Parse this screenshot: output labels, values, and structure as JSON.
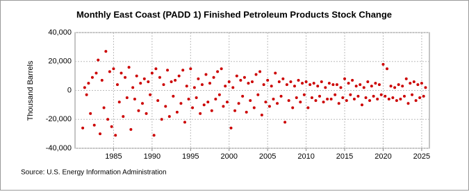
{
  "chart_data": {
    "type": "scatter",
    "title": "Monthly East Coast (PADD 1) Finished Petroleum Products Stock Change",
    "y_label": "Thousand Barrels",
    "source": "Source: U.S. Energy Information Administration",
    "color": "#cc0000",
    "grid": true,
    "xlim": [
      1980,
      2026
    ],
    "ylim": [
      -40000,
      40000
    ],
    "xticks": [
      1985,
      1990,
      1995,
      2000,
      2005,
      2010,
      2015,
      2020,
      2025
    ],
    "yticks": [
      {
        "value": -40000,
        "label": "-40,000"
      },
      {
        "value": -20000,
        "label": "-20,000"
      },
      0,
      {
        "value": 20000,
        "label": "20,000"
      },
      {
        "value": 40000,
        "label": "40,000"
      }
    ],
    "x": [
      1981,
      1981.25,
      1981.5,
      1981.75,
      1982,
      1982.25,
      1982.5,
      1982.75,
      1983,
      1983.25,
      1983.5,
      1983.75,
      1984,
      1984.25,
      1984.5,
      1984.75,
      1985,
      1985.25,
      1985.5,
      1985.75,
      1986,
      1986.25,
      1986.5,
      1986.75,
      1987,
      1987.25,
      1987.5,
      1987.75,
      1988,
      1988.25,
      1988.5,
      1988.75,
      1989,
      1989.25,
      1989.5,
      1989.75,
      1990,
      1990.25,
      1990.5,
      1990.75,
      1991,
      1991.25,
      1991.5,
      1991.75,
      1992,
      1992.25,
      1992.5,
      1992.75,
      1993,
      1993.25,
      1993.5,
      1993.75,
      1994,
      1994.25,
      1994.5,
      1994.75,
      1995,
      1995.25,
      1995.5,
      1995.75,
      1996,
      1996.25,
      1996.5,
      1996.75,
      1997,
      1997.25,
      1997.5,
      1997.75,
      1998,
      1998.25,
      1998.5,
      1998.75,
      1999,
      1999.25,
      1999.5,
      1999.75,
      2000,
      2000.25,
      2000.5,
      2000.75,
      2001,
      2001.25,
      2001.5,
      2001.75,
      2002,
      2002.25,
      2002.5,
      2002.75,
      2003,
      2003.25,
      2003.5,
      2003.75,
      2004,
      2004.25,
      2004.5,
      2004.75,
      2005,
      2005.25,
      2005.5,
      2005.75,
      2006,
      2006.25,
      2006.5,
      2006.75,
      2007,
      2007.25,
      2007.5,
      2007.75,
      2008,
      2008.25,
      2008.5,
      2008.75,
      2009,
      2009.25,
      2009.5,
      2009.75,
      2010,
      2010.25,
      2010.5,
      2010.75,
      2011,
      2011.25,
      2011.5,
      2011.75,
      2012,
      2012.25,
      2012.5,
      2012.75,
      2013,
      2013.25,
      2013.5,
      2013.75,
      2014,
      2014.25,
      2014.5,
      2014.75,
      2015,
      2015.25,
      2015.5,
      2015.75,
      2016,
      2016.25,
      2016.5,
      2016.75,
      2017,
      2017.25,
      2017.5,
      2017.75,
      2018,
      2018.25,
      2018.5,
      2018.75,
      2019,
      2019.25,
      2019.5,
      2019.75,
      2020,
      2020.25,
      2020.5,
      2020.75,
      2021,
      2021.25,
      2021.5,
      2021.75,
      2022,
      2022.25,
      2022.5,
      2022.75,
      2023,
      2023.25,
      2023.5,
      2023.75,
      2024,
      2024.25,
      2024.5,
      2024.75,
      2025,
      2025.25,
      2025.5
    ],
    "values": [
      -26000,
      2000,
      -3000,
      5000,
      -16000,
      9000,
      -24000,
      12000,
      21000,
      -30000,
      7000,
      -12000,
      27000,
      -20000,
      13000,
      -25000,
      15000,
      -31000,
      4000,
      -8000,
      12000,
      -18000,
      9000,
      -5000,
      16000,
      -27000,
      2000,
      -6000,
      10000,
      -14000,
      5000,
      -9000,
      8000,
      -16000,
      6000,
      -3000,
      12000,
      -31000,
      15000,
      -7000,
      9000,
      -20000,
      4000,
      -11000,
      14000,
      -18000,
      6000,
      -4000,
      7000,
      -15000,
      10000,
      -9000,
      14000,
      -22000,
      3000,
      -6000,
      15000,
      -12000,
      2000,
      -5000,
      8000,
      -16000,
      4000,
      -10000,
      11000,
      -8000,
      5000,
      -14000,
      9000,
      -6000,
      13000,
      -3000,
      15000,
      -11000,
      3000,
      -8000,
      6000,
      -26000,
      2000,
      -14000,
      10000,
      -9000,
      7000,
      -4000,
      9000,
      -15000,
      5000,
      -7000,
      6000,
      -12000,
      11000,
      -3000,
      13000,
      -17000,
      4000,
      -8000,
      7000,
      -11000,
      3000,
      -6000,
      12000,
      -9000,
      6000,
      -4000,
      8000,
      -22000,
      4000,
      -7000,
      6000,
      -12000,
      3000,
      -5000,
      7000,
      -8000,
      5000,
      -3000,
      6000,
      -12000,
      4000,
      -5000,
      5000,
      -7000,
      3000,
      -4000,
      6000,
      -8000,
      2000,
      -6000,
      5000,
      -6000,
      4000,
      -3000,
      4000,
      -9000,
      2000,
      -5000,
      8000,
      -7000,
      5000,
      -3000,
      7000,
      -6000,
      3000,
      -4000,
      4000,
      -10000,
      2000,
      -5000,
      6000,
      -7000,
      3000,
      -4000,
      5000,
      -6000,
      4000,
      -3000,
      18000,
      -4000,
      15000,
      -6000,
      3000,
      -5000,
      2000,
      -7000,
      4000,
      -6000,
      3000,
      -4000,
      8000,
      -9000,
      5000,
      -3000,
      6000,
      -7000,
      4000,
      -5000,
      5000,
      -4000,
      2000
    ]
  }
}
